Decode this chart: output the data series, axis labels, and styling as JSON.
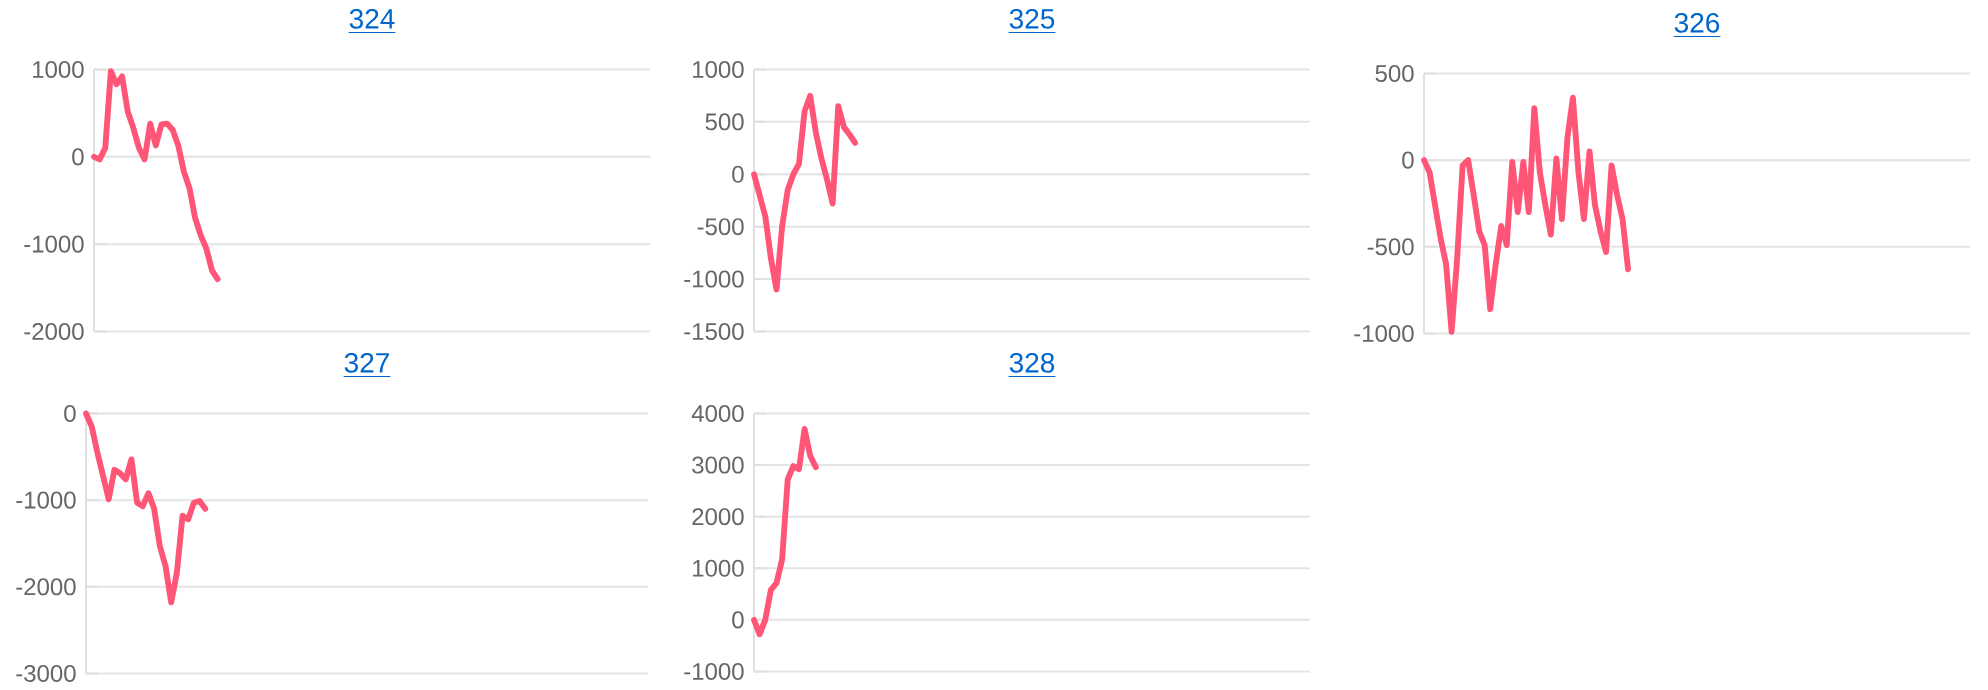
{
  "chart_data": [
    {
      "type": "line",
      "title": "324",
      "grid": "y",
      "tick_labels": "y",
      "ylim": [
        -2000,
        1000
      ],
      "yticks": [
        -2000,
        -1000,
        0,
        1000
      ],
      "categories": [
        null,
        null,
        null,
        null,
        null,
        null,
        null,
        null,
        null,
        null,
        null,
        null,
        null,
        null,
        null,
        null,
        null,
        null,
        null,
        null,
        null,
        null,
        null,
        null,
        null,
        null,
        null,
        null,
        null,
        null,
        null,
        null,
        null,
        null,
        null,
        null,
        null,
        null,
        null,
        null,
        null,
        null,
        null,
        null,
        null,
        null,
        null,
        null,
        null,
        null,
        null,
        null,
        null,
        null,
        null,
        null,
        null,
        null,
        null,
        null,
        null,
        null,
        null,
        null,
        null,
        null,
        null,
        null,
        null,
        null,
        null,
        null,
        null,
        null,
        null,
        null,
        null,
        null,
        null,
        null,
        null,
        null,
        null,
        null,
        null,
        null,
        null,
        null,
        null,
        null,
        null,
        null,
        null,
        null,
        null,
        null,
        null,
        null,
        null,
        null
      ],
      "series": [
        {
          "color": "#ff5577",
          "values": [
            0,
            -30,
            100,
            980,
            830,
            920,
            520,
            330,
            100,
            -30,
            380,
            130,
            370,
            380,
            310,
            130,
            -170,
            -360,
            -700,
            -900,
            -1050,
            -1300,
            -1400,
            null,
            null,
            null,
            null,
            null,
            null,
            null,
            null,
            null,
            null,
            null,
            null,
            null,
            null,
            null,
            null,
            null,
            null,
            null,
            null,
            null,
            null,
            null,
            null,
            null,
            null,
            null,
            null,
            null,
            null,
            null,
            null,
            null,
            null,
            null,
            null,
            null,
            null,
            null,
            null,
            null,
            null,
            null,
            null,
            null,
            null,
            null,
            null,
            null,
            null,
            null,
            null,
            null,
            null,
            null,
            null,
            null,
            null,
            null,
            null,
            null,
            null,
            null,
            null,
            null,
            null,
            null,
            null,
            null,
            null,
            null,
            null,
            null,
            null,
            null,
            null,
            null
          ]
        }
      ]
    },
    {
      "type": "line",
      "title": "325",
      "grid": "y",
      "tick_labels": "y",
      "ylim": [
        -1500,
        1000
      ],
      "yticks": [
        -1500,
        -1000,
        -500,
        0,
        500,
        1000
      ],
      "categories": [
        null,
        null,
        null,
        null,
        null,
        null,
        null,
        null,
        null,
        null,
        null,
        null,
        null,
        null,
        null,
        null,
        null,
        null,
        null,
        null,
        null,
        null,
        null,
        null,
        null,
        null,
        null,
        null,
        null,
        null,
        null,
        null,
        null,
        null,
        null,
        null,
        null,
        null,
        null,
        null,
        null,
        null,
        null,
        null,
        null,
        null,
        null,
        null,
        null,
        null,
        null,
        null,
        null,
        null,
        null,
        null,
        null,
        null,
        null,
        null,
        null,
        null,
        null,
        null,
        null,
        null,
        null,
        null,
        null,
        null,
        null,
        null,
        null,
        null,
        null,
        null,
        null,
        null,
        null,
        null,
        null,
        null,
        null,
        null,
        null,
        null,
        null,
        null,
        null,
        null,
        null,
        null,
        null,
        null,
        null,
        null,
        null,
        null,
        null,
        null
      ],
      "series": [
        {
          "color": "#ff5577",
          "values": [
            0,
            -200,
            -400,
            -800,
            -1100,
            -500,
            -150,
            0,
            100,
            600,
            750,
            400,
            150,
            -50,
            -280,
            650,
            450,
            380,
            300,
            null,
            null,
            null,
            null,
            null,
            null,
            null,
            null,
            null,
            null,
            null,
            null,
            null,
            null,
            null,
            null,
            null,
            null,
            null,
            null,
            null,
            null,
            null,
            null,
            null,
            null,
            null,
            null,
            null,
            null,
            null,
            null,
            null,
            null,
            null,
            null,
            null,
            null,
            null,
            null,
            null,
            null,
            null,
            null,
            null,
            null,
            null,
            null,
            null,
            null,
            null,
            null,
            null,
            null,
            null,
            null,
            null,
            null,
            null,
            null,
            null,
            null,
            null,
            null,
            null,
            null,
            null,
            null,
            null,
            null,
            null,
            null,
            null,
            null,
            null,
            null,
            null,
            null,
            null,
            null,
            null
          ]
        }
      ]
    },
    {
      "type": "line",
      "title": "326",
      "grid": "y",
      "tick_labels": "y",
      "ylim": [
        -1000,
        500
      ],
      "yticks": [
        -1000,
        -500,
        0,
        500
      ],
      "categories": [
        null,
        null,
        null,
        null,
        null,
        null,
        null,
        null,
        null,
        null,
        null,
        null,
        null,
        null,
        null,
        null,
        null,
        null,
        null,
        null,
        null,
        null,
        null,
        null,
        null,
        null,
        null,
        null,
        null,
        null,
        null,
        null,
        null,
        null,
        null,
        null,
        null,
        null,
        null,
        null,
        null,
        null,
        null,
        null,
        null,
        null,
        null,
        null,
        null,
        null,
        null,
        null,
        null,
        null,
        null,
        null,
        null,
        null,
        null,
        null,
        null,
        null,
        null,
        null,
        null,
        null,
        null,
        null,
        null,
        null,
        null,
        null,
        null,
        null,
        null,
        null,
        null,
        null,
        null,
        null,
        null,
        null,
        null,
        null,
        null,
        null,
        null,
        null,
        null,
        null,
        null,
        null,
        null,
        null,
        null,
        null,
        null,
        null,
        null,
        null
      ],
      "series": [
        {
          "color": "#ff5577",
          "values": [
            0,
            -70,
            -260,
            -450,
            -600,
            -990,
            -570,
            -30,
            0,
            -200,
            -410,
            -490,
            -860,
            -600,
            -380,
            -490,
            -10,
            -300,
            -10,
            -300,
            300,
            -70,
            -260,
            -430,
            10,
            -340,
            130,
            360,
            -70,
            -340,
            50,
            -260,
            -410,
            -530,
            -30,
            -200,
            -340,
            -630,
            null,
            null,
            null,
            null,
            null,
            null,
            null,
            null,
            null,
            null,
            null,
            null,
            null,
            null,
            null,
            null,
            null,
            null,
            null,
            null,
            null,
            null,
            null,
            null,
            null,
            null,
            null,
            null,
            null,
            null,
            null,
            null,
            null,
            null,
            null,
            null,
            null,
            null,
            null,
            null,
            null,
            null,
            null,
            null,
            null,
            null,
            null,
            null,
            null,
            null,
            null,
            null,
            null,
            null,
            null,
            null,
            null,
            null,
            null,
            null,
            null,
            null
          ]
        }
      ]
    },
    {
      "type": "line",
      "title": "327",
      "grid": "y",
      "tick_labels": "y",
      "ylim": [
        -3000,
        0
      ],
      "yticks": [
        -3000,
        -2000,
        -1000,
        0
      ],
      "categories": [
        null,
        null,
        null,
        null,
        null,
        null,
        null,
        null,
        null,
        null,
        null,
        null,
        null,
        null,
        null,
        null,
        null,
        null,
        null,
        null,
        null,
        null,
        null,
        null,
        null,
        null,
        null,
        null,
        null,
        null,
        null,
        null,
        null,
        null,
        null,
        null,
        null,
        null,
        null,
        null,
        null,
        null,
        null,
        null,
        null,
        null,
        null,
        null,
        null,
        null,
        null,
        null,
        null,
        null,
        null,
        null,
        null,
        null,
        null,
        null,
        null,
        null,
        null,
        null,
        null,
        null,
        null,
        null,
        null,
        null,
        null,
        null,
        null,
        null,
        null,
        null,
        null,
        null,
        null,
        null,
        null,
        null,
        null,
        null,
        null,
        null,
        null,
        null,
        null,
        null,
        null,
        null,
        null,
        null,
        null,
        null,
        null,
        null,
        null,
        null
      ],
      "series": [
        {
          "color": "#ff5577",
          "values": [
            0,
            -150,
            -450,
            -720,
            -990,
            -650,
            -690,
            -760,
            -530,
            -1030,
            -1070,
            -920,
            -1100,
            -1530,
            -1760,
            -2180,
            -1840,
            -1180,
            -1220,
            -1030,
            -1010,
            -1100,
            null,
            null,
            null,
            null,
            null,
            null,
            null,
            null,
            null,
            null,
            null,
            null,
            null,
            null,
            null,
            null,
            null,
            null,
            null,
            null,
            null,
            null,
            null,
            null,
            null,
            null,
            null,
            null,
            null,
            null,
            null,
            null,
            null,
            null,
            null,
            null,
            null,
            null,
            null,
            null,
            null,
            null,
            null,
            null,
            null,
            null,
            null,
            null,
            null,
            null,
            null,
            null,
            null,
            null,
            null,
            null,
            null,
            null,
            null,
            null,
            null,
            null,
            null,
            null,
            null,
            null,
            null,
            null,
            null,
            null,
            null,
            null,
            null,
            null,
            null,
            null,
            null,
            null
          ]
        }
      ]
    },
    {
      "type": "line",
      "title": "328",
      "grid": "y",
      "tick_labels": "y",
      "ylim": [
        -1000,
        4000
      ],
      "yticks": [
        -1000,
        0,
        1000,
        2000,
        3000,
        4000
      ],
      "categories": [
        null,
        null,
        null,
        null,
        null,
        null,
        null,
        null,
        null,
        null,
        null,
        null,
        null,
        null,
        null,
        null,
        null,
        null,
        null,
        null,
        null,
        null,
        null,
        null,
        null,
        null,
        null,
        null,
        null,
        null,
        null,
        null,
        null,
        null,
        null,
        null,
        null,
        null,
        null,
        null,
        null,
        null,
        null,
        null,
        null,
        null,
        null,
        null,
        null,
        null,
        null,
        null,
        null,
        null,
        null,
        null,
        null,
        null,
        null,
        null,
        null,
        null,
        null,
        null,
        null,
        null,
        null,
        null,
        null,
        null,
        null,
        null,
        null,
        null,
        null,
        null,
        null,
        null,
        null,
        null,
        null,
        null,
        null,
        null,
        null,
        null,
        null,
        null,
        null,
        null,
        null,
        null,
        null,
        null,
        null,
        null,
        null,
        null,
        null,
        null
      ],
      "series": [
        {
          "color": "#ff5577",
          "values": [
            0,
            -280,
            0,
            580,
            710,
            1170,
            2720,
            2980,
            2920,
            3700,
            3180,
            2960,
            null,
            null,
            null,
            null,
            null,
            null,
            null,
            null,
            null,
            null,
            null,
            null,
            null,
            null,
            null,
            null,
            null,
            null,
            null,
            null,
            null,
            null,
            null,
            null,
            null,
            null,
            null,
            null,
            null,
            null,
            null,
            null,
            null,
            null,
            null,
            null,
            null,
            null,
            null,
            null,
            null,
            null,
            null,
            null,
            null,
            null,
            null,
            null,
            null,
            null,
            null,
            null,
            null,
            null,
            null,
            null,
            null,
            null,
            null,
            null,
            null,
            null,
            null,
            null,
            null,
            null,
            null,
            null,
            null,
            null,
            null,
            null,
            null,
            null,
            null,
            null,
            null,
            null,
            null,
            null,
            null,
            null,
            null,
            null,
            null,
            null,
            null,
            null
          ]
        }
      ]
    }
  ]
}
